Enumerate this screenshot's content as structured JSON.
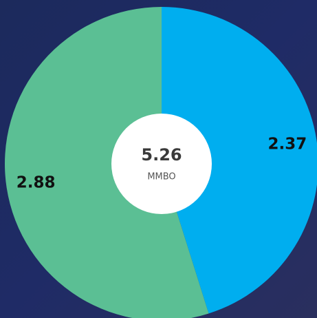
{
  "chart_data": {
    "type": "donut",
    "values": [
      2.37,
      2.88
    ],
    "colors": [
      "#00aeef",
      "#5bbf94"
    ],
    "total": 5.26,
    "unit": "MMBO"
  }
}
